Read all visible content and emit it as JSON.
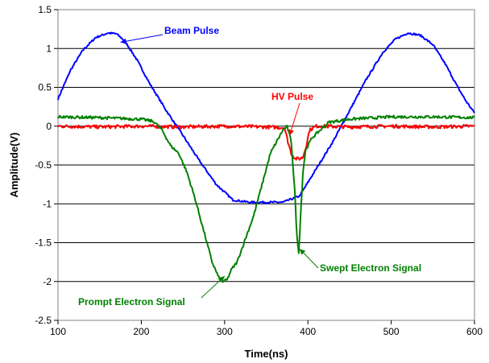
{
  "chart_data": {
    "type": "line",
    "title": "",
    "xlabel": "Time(ns)",
    "ylabel": "Amplitude(V)",
    "xlim": [
      100,
      600
    ],
    "ylim": [
      -2.5,
      1.5
    ],
    "x_ticks": [
      100,
      200,
      300,
      400,
      500,
      600
    ],
    "y_ticks": [
      -2.5,
      -2,
      -1.5,
      -1,
      -0.5,
      0,
      0.5,
      1,
      1.5
    ],
    "x_tick_labels": [
      "100",
      "200",
      "300",
      "400",
      "500",
      "600"
    ],
    "y_tick_labels": [
      "-2.5",
      "-2",
      "-1.5",
      "-1",
      "-0.5",
      "0",
      "0.5",
      "1",
      "1.5"
    ],
    "grid": "horizontal",
    "series": [
      {
        "name": "Beam Pulse",
        "color": "#0000ff",
        "x": [
          100,
          115,
          130,
          145,
          160,
          170,
          180,
          195,
          210,
          230,
          250,
          270,
          290,
          310,
          330,
          350,
          370,
          390,
          410,
          430,
          450,
          470,
          490,
          505,
          520,
          535,
          550,
          565,
          580,
          590,
          600
        ],
        "y": [
          0.35,
          0.72,
          0.98,
          1.14,
          1.2,
          1.19,
          1.1,
          0.85,
          0.55,
          0.2,
          -0.12,
          -0.45,
          -0.75,
          -0.95,
          -0.98,
          -0.98,
          -0.98,
          -0.9,
          -0.55,
          -0.2,
          0.2,
          0.6,
          0.95,
          1.12,
          1.2,
          1.17,
          1.05,
          0.8,
          0.5,
          0.32,
          0.17
        ]
      },
      {
        "name": "HV Pulse",
        "color": "#ff0000",
        "x": [
          100,
          150,
          200,
          250,
          300,
          350,
          372,
          376,
          380,
          385,
          390,
          394,
          398,
          402,
          410,
          450,
          500,
          550,
          600
        ],
        "y": [
          0,
          -0.01,
          0,
          -0.01,
          0,
          -0.01,
          -0.02,
          -0.2,
          -0.35,
          -0.42,
          -0.42,
          -0.4,
          -0.25,
          -0.05,
          0,
          -0.01,
          0,
          -0.01,
          0
        ]
      },
      {
        "name": "Prompt Electron Signal",
        "color": "#008000",
        "x": [
          100,
          150,
          200,
          215,
          225,
          235,
          245,
          255,
          265,
          275,
          285,
          293,
          298,
          303,
          308,
          315,
          325,
          335,
          345,
          355,
          365,
          370,
          375
        ],
        "y": [
          0.12,
          0.11,
          0.09,
          0.06,
          -0.05,
          -0.25,
          -0.35,
          -0.6,
          -0.95,
          -1.35,
          -1.75,
          -1.95,
          -2.0,
          -1.98,
          -1.85,
          -1.75,
          -1.45,
          -1.15,
          -0.75,
          -0.35,
          -0.15,
          -0.05,
          0.0
        ]
      },
      {
        "name": "Swept Electron Signal",
        "color": "#008000",
        "x": [
          375,
          380,
          384,
          387,
          389,
          391,
          394,
          397,
          400,
          405,
          415,
          425,
          450,
          500,
          550,
          600
        ],
        "y": [
          0.0,
          -0.2,
          -0.8,
          -1.45,
          -1.62,
          -1.2,
          -0.6,
          -0.32,
          -0.25,
          -0.15,
          -0.05,
          0.05,
          0.09,
          0.12,
          0.12,
          0.11
        ]
      }
    ],
    "annotations": [
      {
        "text": "Beam Pulse",
        "color": "#0000ff",
        "x": 175,
        "y": 1.08
      },
      {
        "text": "HV Pulse",
        "color": "#ff0000",
        "x": 378,
        "y": -0.12
      },
      {
        "text": "Prompt Electron Signal",
        "color": "#008000",
        "x": 300,
        "y": -1.93
      },
      {
        "text": "Swept Electron Signal",
        "color": "#008000",
        "x": 390,
        "y": -1.58
      }
    ]
  }
}
